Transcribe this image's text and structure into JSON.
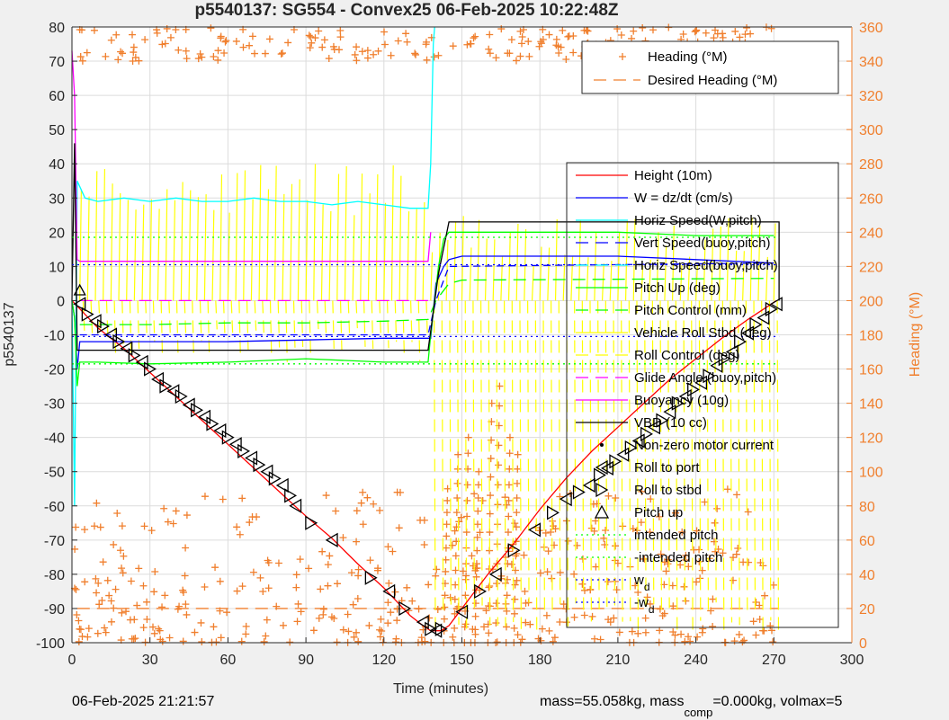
{
  "figure": {
    "title": "p5540137: SG554 - Convex25 06-Feb-2025 10:22:48Z",
    "footer_left": "06-Feb-2025 21:21:57",
    "footer_right_a": "mass=55.058kg, mass",
    "footer_right_sub": "comp",
    "footer_right_b": "=0.000kg, volmax=5"
  },
  "chart_data": {
    "type": "line",
    "title": "p5540137: SG554 - Convex25 06-Feb-2025 10:22:48Z",
    "xlabel": "Time (minutes)",
    "ylabel": "p5540137",
    "y2label": "Heading (°M)",
    "xlim": [
      0,
      300
    ],
    "ylim": [
      -100,
      80
    ],
    "y2lim": [
      0,
      360
    ],
    "xticks": [
      0,
      30,
      60,
      90,
      120,
      150,
      180,
      210,
      240,
      270,
      300
    ],
    "yticks": [
      -100,
      -90,
      -80,
      -70,
      -60,
      -50,
      -40,
      -30,
      -20,
      -10,
      0,
      10,
      20,
      30,
      40,
      50,
      60,
      70,
      80
    ],
    "y2ticks": [
      0,
      20,
      40,
      60,
      80,
      100,
      120,
      140,
      160,
      180,
      200,
      220,
      240,
      260,
      280,
      300,
      320,
      340,
      360
    ],
    "grid": true,
    "legend_main": [
      {
        "label": "Height (10m)",
        "color": "#ff0000",
        "style": "solid"
      },
      {
        "label": "W = dz/dt (cm/s)",
        "color": "#0000ff",
        "style": "solid"
      },
      {
        "label": "Horiz Speed(W,pitch)",
        "color": "#00ffff",
        "style": "solid"
      },
      {
        "label": "Vert Speed(buoy,pitch)",
        "color": "#0000ff",
        "style": "dash"
      },
      {
        "label": "Horiz Speed(buoy,pitch)",
        "color": "#00ffff",
        "style": "dash"
      },
      {
        "label": "Pitch Up (deg)",
        "color": "#00ff00",
        "style": "solid"
      },
      {
        "label": "Pitch Control (mm)",
        "color": "#00ff00",
        "style": "dash"
      },
      {
        "label": "Vehicle Roll Stbd (deg)",
        "color": "#ffff00",
        "style": "solid"
      },
      {
        "label": "Roll Control (deg)",
        "color": "#ffff00",
        "style": "dash"
      },
      {
        "label": "Glide Angle (buoy,pitch)",
        "color": "#ff00ff",
        "style": "dash"
      },
      {
        "label": "Buoyancy (10g)",
        "color": "#ff00ff",
        "style": "solid"
      },
      {
        "label": "VBD (10 cc)",
        "color": "#000000",
        "style": "solid"
      },
      {
        "label": "Non-zero motor current",
        "color": "#000000",
        "style": "dot"
      },
      {
        "label": "Roll to port",
        "color": "#000000",
        "style": "tri-left"
      },
      {
        "label": "Roll to stbd",
        "color": "#000000",
        "style": "tri-right"
      },
      {
        "label": "Pitch up",
        "color": "#000000",
        "style": "tri-up"
      },
      {
        "label": "intended pitch",
        "color": "#00ff00",
        "style": "dotted"
      },
      {
        "label": "-intended pitch",
        "color": "#00ff00",
        "style": "dotted"
      },
      {
        "label": "w",
        "sub": "d",
        "color": "#0000ff",
        "style": "dotted"
      },
      {
        "label": "-w",
        "sub": "d",
        "color": "#0000ff",
        "style": "dotted"
      }
    ],
    "legend_heading": [
      {
        "label": "Heading (°M)",
        "color": "#f07f2d",
        "style": "plus"
      },
      {
        "label": "Desired Heading (°M)",
        "color": "#f07f2d",
        "style": "dash"
      }
    ],
    "series": [
      {
        "name": "Height (10m)",
        "color": "#ff0000",
        "x": [
          0,
          5,
          10,
          20,
          30,
          40,
          50,
          60,
          70,
          80,
          90,
          100,
          110,
          120,
          130,
          135,
          138,
          142,
          145,
          150,
          160,
          170,
          180,
          190,
          200,
          210,
          220,
          230,
          240,
          250,
          260,
          271
        ],
        "y": [
          0,
          -4,
          -8,
          -14,
          -21,
          -28,
          -35,
          -42,
          -49,
          -56,
          -63,
          -69.5,
          -77,
          -84,
          -92,
          -95,
          -96.5,
          -96.5,
          -95,
          -90,
          -80,
          -71,
          -61,
          -52,
          -44,
          -37,
          -30,
          -23,
          -17,
          -11,
          -5.5,
          0
        ]
      },
      {
        "name": "W = dz/dt (cm/s)",
        "color": "#0000ff",
        "x": [
          0,
          1,
          2,
          3,
          10,
          30,
          60,
          90,
          120,
          138,
          140,
          143,
          145,
          150,
          180,
          210,
          240,
          270
        ],
        "y": [
          0,
          -5,
          -20,
          -12,
          -12,
          -12,
          -12,
          -11.5,
          -11,
          -11,
          5,
          10,
          12,
          13,
          13,
          13,
          12,
          11
        ]
      },
      {
        "name": "Horiz Speed(W,pitch)",
        "color": "#00ffff",
        "x": [
          0,
          1,
          2,
          5,
          10,
          20,
          30,
          40,
          50,
          60,
          70,
          80,
          90,
          100,
          110,
          120,
          130,
          137,
          138,
          139,
          139.5
        ],
        "y": [
          0,
          -60,
          35,
          30,
          29,
          30,
          29,
          30,
          29,
          29,
          30,
          29,
          29,
          28,
          29,
          28,
          27,
          27,
          40,
          75,
          80
        ]
      },
      {
        "name": "Vert Speed(buoy,pitch)",
        "color": "#0000ff",
        "dash": "8,5",
        "x": [
          3,
          137,
          140,
          145,
          270
        ],
        "y": [
          -10,
          -10,
          0,
          10,
          11
        ]
      },
      {
        "name": "Pitch Up (deg)",
        "color": "#00ff00",
        "x": [
          0,
          1,
          2,
          3,
          10,
          30,
          60,
          90,
          120,
          137,
          138,
          141,
          143,
          145,
          150,
          180,
          210,
          240,
          270
        ],
        "y": [
          0,
          -5,
          -25,
          -18,
          -18,
          -18.5,
          -18,
          -17,
          -18,
          -18,
          -10,
          10,
          18,
          20,
          20,
          20,
          20,
          19,
          19
        ]
      },
      {
        "name": "Pitch Control (mm)",
        "color": "#00ff00",
        "dash": "14,8",
        "x": [
          3,
          30,
          60,
          90,
          120,
          137,
          140,
          145,
          150,
          270
        ],
        "y": [
          -7,
          -7,
          -6.5,
          -6.5,
          -6,
          -5.5,
          0,
          5,
          6,
          6.5
        ]
      },
      {
        "name": "Buoyancy (10g)",
        "color": "#ff00ff",
        "x": [
          0,
          1,
          2,
          3,
          30,
          60,
          90,
          120,
          137,
          138
        ],
        "y": [
          73,
          60,
          12,
          11.5,
          11.5,
          11.5,
          11.5,
          11.5,
          11.5,
          20
        ]
      },
      {
        "name": "Glide Angle (buoy,pitch)",
        "color": "#ff00ff",
        "dash": "14,8",
        "x": [
          3,
          137
        ],
        "y": [
          0,
          0
        ]
      },
      {
        "name": "VBD (10 cc)",
        "color": "#000000",
        "x": [
          0,
          1,
          2,
          3,
          137,
          141,
          145,
          272,
          272
        ],
        "y": [
          0,
          46,
          -14.5,
          -14.5,
          -14.5,
          8,
          23,
          23,
          0
        ]
      },
      {
        "name": "intended pitch",
        "color": "#00ff00",
        "dash": "2,4",
        "x": [
          0,
          272
        ],
        "y": [
          18.5,
          18.5
        ]
      },
      {
        "name": "-intended pitch",
        "color": "#00ff00",
        "dash": "2,4",
        "x": [
          0,
          272
        ],
        "y": [
          -18.5,
          -18.5
        ]
      },
      {
        "name": "w",
        "color": "#0000ff",
        "dash": "2,4",
        "x": [
          0,
          272
        ],
        "y": [
          10.5,
          10.5
        ]
      },
      {
        "name": "-w",
        "color": "#0000ff",
        "dash": "2,4",
        "x": [
          0,
          272
        ],
        "y": [
          -10.5,
          -10.5
        ]
      }
    ],
    "roll_markers": {
      "x": [
        3,
        6,
        9,
        12,
        15,
        18,
        21,
        24,
        27,
        30,
        33,
        36,
        39,
        42,
        45,
        48,
        51,
        54,
        57,
        60,
        63,
        66,
        69,
        72,
        75,
        78,
        81,
        84,
        86,
        92,
        100,
        115,
        122,
        128,
        135,
        138,
        140,
        142,
        150,
        157,
        163,
        170,
        178,
        185,
        190,
        195,
        199,
        203,
        206,
        209,
        212,
        215,
        218,
        221,
        224,
        227,
        230,
        233,
        236,
        239,
        242,
        245,
        248,
        251,
        254,
        257,
        260,
        263,
        266,
        269,
        271
      ],
      "y": [
        -1,
        -4,
        -6,
        -7.5,
        -10,
        -12,
        -14,
        -16,
        -18,
        -20,
        -23,
        -25,
        -26.5,
        -28,
        -30.5,
        -32,
        -34,
        -36,
        -38,
        -40,
        -42,
        -44,
        -46,
        -48,
        -50,
        -52,
        -54,
        -57,
        -60,
        -65,
        -70,
        -81,
        -85,
        -90,
        -94,
        -96,
        -96.5,
        -96,
        -91,
        -85,
        -80,
        -73,
        -67,
        -62,
        -58,
        -56,
        -54,
        -51,
        -49,
        -47,
        -45,
        -43,
        -41,
        -39,
        -37,
        -35,
        -32.5,
        -30,
        -28,
        -26,
        -24,
        -22,
        -19,
        -17,
        -15,
        -12,
        -9.5,
        -7,
        -5,
        -2.5,
        -1
      ]
    },
    "heading_scatter": {
      "desired_heading_y2": 20,
      "top_band_y2": [
        340,
        360
      ],
      "bottom_band_y2": [
        0,
        90
      ],
      "ascent_spikes_x": [
        143,
        147,
        151,
        155,
        160,
        163,
        167,
        170
      ],
      "ascent_spikes_top_y2": [
        90,
        110,
        120,
        100,
        140,
        150,
        120,
        110
      ]
    }
  }
}
